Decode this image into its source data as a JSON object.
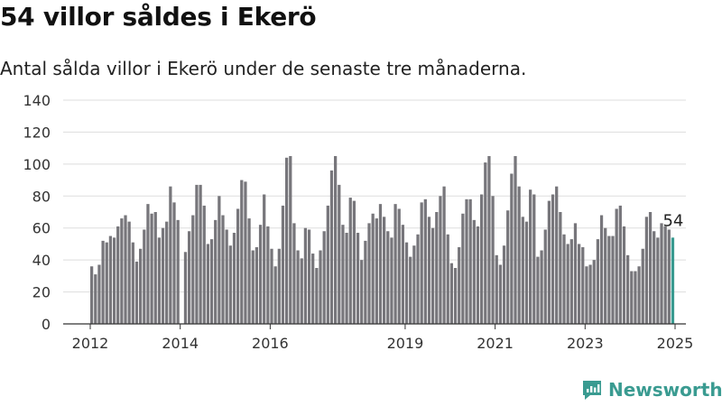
{
  "header": {
    "title": "54 villor såldes i Ekerö",
    "subtitle": "Antal sålda villor i Ekerö under de senaste tre månaderna."
  },
  "brand": {
    "name": "Newsworthy",
    "logo_icon": "newsworthy-logo-icon"
  },
  "colors": {
    "bar": "#77767b",
    "highlight": "#3a9b91",
    "grid": "#dddddd"
  },
  "chart_data": {
    "type": "bar",
    "title": "",
    "xlabel": "",
    "ylabel": "",
    "ylim": [
      0,
      140
    ],
    "yticks": [
      0,
      20,
      40,
      60,
      80,
      100,
      120,
      140
    ],
    "xticks": [
      "2012",
      "2014",
      "2016",
      "2019",
      "2021",
      "2023",
      "2025"
    ],
    "grid": true,
    "x_start": "2012-01",
    "x_end": "2025-01",
    "values": [
      36,
      31,
      37,
      52,
      51,
      55,
      54,
      61,
      66,
      68,
      64,
      51,
      39,
      47,
      59,
      75,
      69,
      70,
      54,
      60,
      64,
      86,
      76,
      65,
      0,
      45,
      58,
      68,
      87,
      87,
      74,
      50,
      53,
      65,
      80,
      68,
      59,
      49,
      57,
      72,
      90,
      89,
      66,
      46,
      48,
      62,
      81,
      61,
      47,
      36,
      47,
      74,
      104,
      105,
      63,
      46,
      41,
      60,
      59,
      44,
      35,
      46,
      58,
      74,
      96,
      105,
      87,
      62,
      57,
      79,
      77,
      57,
      40,
      52,
      63,
      69,
      66,
      75,
      67,
      58,
      54,
      75,
      72,
      62,
      51,
      42,
      49,
      56,
      76,
      78,
      67,
      60,
      70,
      80,
      86,
      56,
      38,
      35,
      48,
      69,
      78,
      78,
      65,
      61,
      81,
      101,
      105,
      80,
      43,
      37,
      49,
      71,
      94,
      105,
      86,
      67,
      64,
      84,
      81,
      42,
      46,
      59,
      77,
      81,
      86,
      70,
      56,
      50,
      53,
      63,
      50,
      48,
      36,
      37,
      40,
      53,
      68,
      60,
      55,
      55,
      72,
      74,
      61,
      43,
      33,
      33,
      36,
      47,
      67,
      70,
      58,
      54,
      63,
      61,
      59,
      54
    ],
    "highlight_last": true,
    "annotation": "54"
  }
}
